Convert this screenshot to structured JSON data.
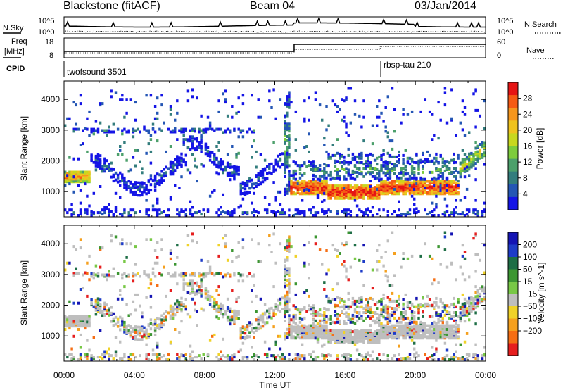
{
  "header": {
    "station": "Blackstone (fitACF)",
    "beam": "Beam 04",
    "date": "03/Jan/2014"
  },
  "top_panels": {
    "nsky_label": "N.Sky",
    "nsearch_label": "N.Search",
    "noise_ticks": [
      "10^5",
      "10^0"
    ],
    "freq_label_1": "Freq",
    "freq_label_2": "[MHz]",
    "freq_ticks": [
      "18",
      "8"
    ],
    "nave_label": "Nave",
    "nave_ticks": [
      "60",
      "0"
    ],
    "cpid_label": "CPID",
    "cpid_1": "twofsound 3501",
    "cpid_2": "rbsp-tau 210"
  },
  "chart_data": [
    {
      "type": "heatmap",
      "name": "power",
      "ylabel": "Slant Range [km]",
      "xlabel": "Time UT",
      "x_ticks": [
        "00:00",
        "04:00",
        "08:00",
        "12:00",
        "16:00",
        "20:00",
        "00:00"
      ],
      "x_range_hours": [
        0,
        24
      ],
      "y_ticks": [
        1000,
        2000,
        3000,
        4000
      ],
      "y_range": [
        180,
        4600
      ],
      "colorbar": {
        "label": "Power [dB]",
        "ticks": [
          4,
          8,
          12,
          16,
          20,
          24,
          28
        ],
        "range": [
          0,
          32
        ],
        "colors": [
          "#1414e6",
          "#2456b4",
          "#337d7d",
          "#4ca06b",
          "#7dcc3c",
          "#c8d71e",
          "#f0c31e",
          "#f5961e",
          "#f55a14",
          "#e61414"
        ]
      }
    },
    {
      "type": "heatmap",
      "name": "velocity",
      "ylabel": "Slant Range [km]",
      "xlabel": "Time UT",
      "x_ticks": [
        "00:00",
        "04:00",
        "08:00",
        "12:00",
        "16:00",
        "20:00",
        "00:00"
      ],
      "x_range_hours": [
        0,
        24
      ],
      "y_ticks": [
        1000,
        2000,
        3000,
        4000
      ],
      "y_range": [
        180,
        4600
      ],
      "colorbar": {
        "label": "Velocity [m s^-1]",
        "ticks": [
          200,
          100,
          50,
          15,
          -15,
          -50,
          -100,
          -200
        ],
        "colors": [
          "#1414b4",
          "#1e3cc8",
          "#1e6e46",
          "#3c9632",
          "#78c846",
          "#bebebe",
          "#f0d228",
          "#f5a01e",
          "#f56e14",
          "#e61e1e"
        ]
      }
    }
  ],
  "colors": {
    "ground_scatter": "#bebebe",
    "axis": "#000000"
  }
}
